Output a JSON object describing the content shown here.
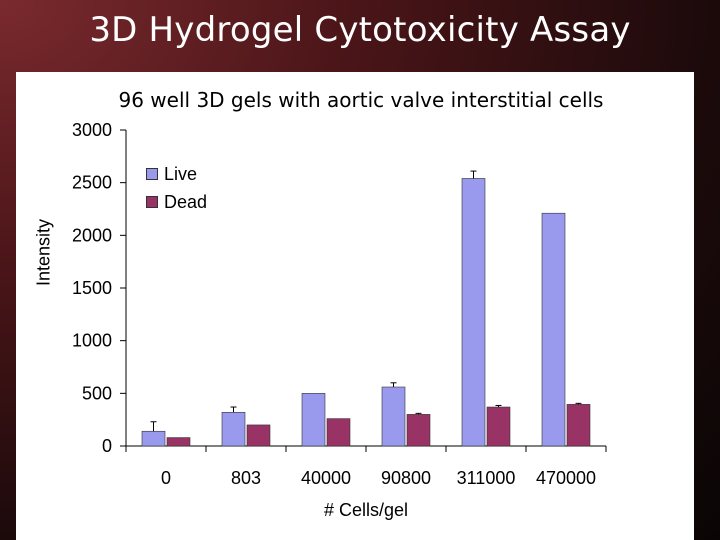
{
  "slide": {
    "title": "3D Hydrogel Cytotoxicity Assay"
  },
  "chart_data": {
    "type": "bar",
    "title": "96 well 3D gels with aortic valve interstitial cells",
    "xlabel": "# Cells/gel",
    "ylabel": "Intensity",
    "categories": [
      "0",
      "803",
      "40000",
      "90800",
      "311000",
      "470000"
    ],
    "series": [
      {
        "name": "Live",
        "color": "#9999ee",
        "values": [
          140,
          320,
          500,
          560,
          2540,
          2210
        ],
        "errors": [
          90,
          50,
          0,
          40,
          70,
          0
        ]
      },
      {
        "name": "Dead",
        "color": "#993366",
        "values": [
          80,
          200,
          260,
          300,
          370,
          395
        ],
        "errors": [
          0,
          0,
          0,
          10,
          15,
          10
        ]
      }
    ],
    "ylim": [
      0,
      3000
    ],
    "yticks": [
      0,
      500,
      1000,
      1500,
      2000,
      2500,
      3000
    ],
    "legend": "top-left",
    "grid": false
  }
}
